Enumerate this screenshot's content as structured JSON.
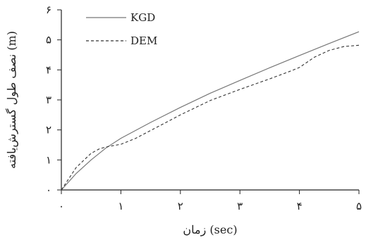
{
  "chart_data": {
    "type": "line",
    "xlabel": "زمان (sec)",
    "ylabel": "نصف طول گسترش‌یافته (m)",
    "xlim": [
      0,
      5
    ],
    "ylim": [
      0,
      6
    ],
    "x_ticks": [
      0,
      1,
      2,
      3,
      4,
      5
    ],
    "y_ticks": [
      0,
      1,
      2,
      3,
      4,
      5,
      6
    ],
    "x_tick_labels": [
      "۰",
      "۱",
      "۲",
      "۳",
      "۴",
      "۵"
    ],
    "y_tick_labels": [
      "۰",
      "۱",
      "۲",
      "۳",
      "۴",
      "۵",
      "۶"
    ],
    "grid": false,
    "legend_position": "top-left",
    "series": [
      {
        "name": "KGD",
        "style": "solid",
        "color": "#777777",
        "x": [
          0,
          0.25,
          0.5,
          0.75,
          1.0,
          1.5,
          2.0,
          2.5,
          3.0,
          3.5,
          4.0,
          4.5,
          5.0
        ],
        "y": [
          0,
          0.55,
          1.0,
          1.4,
          1.72,
          2.25,
          2.75,
          3.22,
          3.65,
          4.07,
          4.48,
          4.88,
          5.27
        ]
      },
      {
        "name": "DEM",
        "style": "dashed",
        "color": "#333333",
        "x": [
          0,
          0.25,
          0.5,
          0.65,
          0.8,
          1.0,
          1.25,
          1.5,
          2.0,
          2.5,
          3.0,
          3.5,
          3.8,
          4.0,
          4.25,
          4.5,
          4.75,
          5.0
        ],
        "y": [
          0,
          0.75,
          1.22,
          1.38,
          1.45,
          1.52,
          1.72,
          1.98,
          2.5,
          2.98,
          3.35,
          3.7,
          3.92,
          4.08,
          4.42,
          4.65,
          4.78,
          4.82
        ]
      }
    ]
  }
}
